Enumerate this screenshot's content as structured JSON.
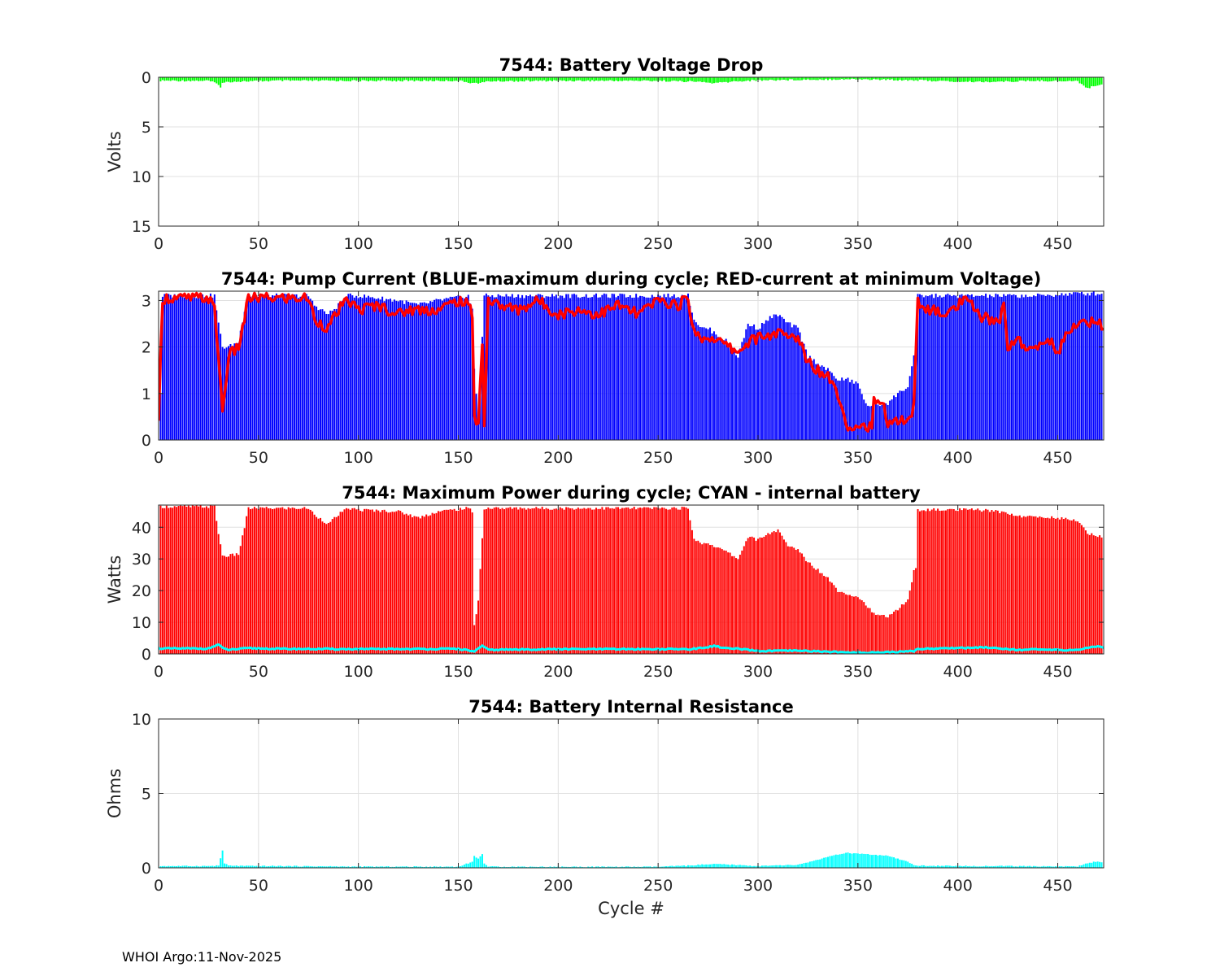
{
  "figure": {
    "xlabel": "Cycle #",
    "footer": "WHOI Argo:11-Nov-2025"
  },
  "chart_data": [
    {
      "type": "bar",
      "title": "7544: Battery Voltage Drop",
      "xlabel": "",
      "ylabel": "Volts",
      "xlim": [
        0,
        473
      ],
      "ylim": [
        0,
        15
      ],
      "y_reversed": true,
      "xticks": [
        0,
        50,
        100,
        150,
        200,
        250,
        300,
        350,
        400,
        450
      ],
      "yticks": [
        0,
        5,
        10,
        15
      ],
      "grid": true,
      "color": "#00ff00",
      "series_knots": [
        {
          "name": "voltage_drop",
          "x": [
            1,
            25,
            30,
            31,
            32,
            35,
            45,
            60,
            100,
            150,
            158,
            162,
            165,
            200,
            250,
            270,
            278,
            290,
            300,
            340,
            350,
            380,
            400,
            420,
            440,
            460,
            465,
            470,
            473
          ],
          "y": [
            0.35,
            0.35,
            0.7,
            1.0,
            0.6,
            0.45,
            0.4,
            0.35,
            0.35,
            0.35,
            0.6,
            0.55,
            0.4,
            0.35,
            0.35,
            0.45,
            0.6,
            0.4,
            0.3,
            0.2,
            0.2,
            0.3,
            0.45,
            0.45,
            0.35,
            0.4,
            1.1,
            0.8,
            0.6
          ]
        }
      ]
    },
    {
      "type": "bar+line",
      "title": "7544: Pump Current (BLUE-maximum during cycle; RED-current at minimum Voltage)",
      "xlabel": "",
      "ylabel": "",
      "xlim": [
        0,
        473
      ],
      "ylim": [
        0,
        3.2
      ],
      "xticks": [
        0,
        50,
        100,
        150,
        200,
        250,
        300,
        350,
        400,
        450
      ],
      "yticks": [
        0,
        1,
        2,
        3
      ],
      "grid": true,
      "series_knots": [
        {
          "name": "maximum during cycle",
          "color": "#0000ff",
          "x": [
            1,
            2,
            28,
            30,
            32,
            35,
            40,
            43,
            45,
            75,
            78,
            85,
            90,
            95,
            100,
            120,
            130,
            140,
            155,
            157,
            158,
            160,
            163,
            165,
            200,
            250,
            265,
            268,
            272,
            275,
            285,
            290,
            295,
            300,
            305,
            310,
            315,
            320,
            325,
            335,
            340,
            345,
            350,
            355,
            358,
            360,
            365,
            370,
            375,
            378,
            379,
            380,
            410,
            440,
            460,
            473
          ],
          "y": [
            1.0,
            3.1,
            3.1,
            2.5,
            2.0,
            2.0,
            2.1,
            2.8,
            3.1,
            3.1,
            2.9,
            2.7,
            2.9,
            3.1,
            3.1,
            3.0,
            2.9,
            3.0,
            3.1,
            2.8,
            1.5,
            0.5,
            3.1,
            3.1,
            3.1,
            3.1,
            3.1,
            2.6,
            2.4,
            2.4,
            2.1,
            1.8,
            2.5,
            2.4,
            2.6,
            2.7,
            2.5,
            2.4,
            1.8,
            1.5,
            1.3,
            1.3,
            1.2,
            0.7,
            0.8,
            0.75,
            0.8,
            1.0,
            1.15,
            1.8,
            1.5,
            3.1,
            3.1,
            3.1,
            3.15,
            3.15
          ]
        },
        {
          "name": "current at minimum voltage",
          "color": "#ff0000",
          "x": [
            0,
            1,
            2,
            25,
            28,
            30,
            32,
            35,
            40,
            43,
            45,
            75,
            78,
            85,
            90,
            95,
            100,
            110,
            120,
            125,
            130,
            140,
            150,
            155,
            157,
            158,
            160,
            162,
            163,
            165,
            170,
            180,
            190,
            200,
            210,
            220,
            230,
            240,
            250,
            260,
            265,
            268,
            272,
            278,
            285,
            290,
            295,
            300,
            310,
            315,
            320,
            325,
            330,
            335,
            340,
            342,
            345,
            350,
            355,
            357,
            358,
            360,
            363,
            365,
            370,
            375,
            378,
            380,
            385,
            395,
            400,
            405,
            410,
            415,
            420,
            423,
            425,
            430,
            435,
            440,
            445,
            450,
            455,
            460,
            465,
            470,
            473
          ],
          "y": [
            0.3,
            1.8,
            3.05,
            3.05,
            2.8,
            1.8,
            0.6,
            1.8,
            2.0,
            2.6,
            3.05,
            3.05,
            2.6,
            2.4,
            2.8,
            3.0,
            2.8,
            2.9,
            2.7,
            2.8,
            2.8,
            2.8,
            3.0,
            2.9,
            2.7,
            0.5,
            0.4,
            2.0,
            0.4,
            3.0,
            2.9,
            2.8,
            3.0,
            2.7,
            2.8,
            2.7,
            2.9,
            2.7,
            3.0,
            2.9,
            3.05,
            2.3,
            2.2,
            2.2,
            2.0,
            1.9,
            2.1,
            2.2,
            2.3,
            2.2,
            2.2,
            1.7,
            1.5,
            1.4,
            1.0,
            0.7,
            0.3,
            0.3,
            0.3,
            0.3,
            0.8,
            0.75,
            0.7,
            0.4,
            0.4,
            0.4,
            0.7,
            3.0,
            2.8,
            2.7,
            2.9,
            3.0,
            2.7,
            2.6,
            2.5,
            2.9,
            2.0,
            2.2,
            1.9,
            2.0,
            2.2,
            1.9,
            2.3,
            2.5,
            2.5,
            2.6,
            2.4
          ]
        }
      ]
    },
    {
      "type": "bar+line",
      "title": "7544: Maximum Power during cycle; CYAN - internal battery",
      "xlabel": "",
      "ylabel": "Watts",
      "xlim": [
        0,
        473
      ],
      "ylim": [
        0,
        47
      ],
      "xticks": [
        0,
        50,
        100,
        150,
        200,
        250,
        300,
        350,
        400,
        450
      ],
      "yticks": [
        0,
        10,
        20,
        30,
        40
      ],
      "grid": true,
      "series_knots": [
        {
          "name": "maximum power",
          "color": "#ff0000",
          "x": [
            1,
            28,
            30,
            32,
            35,
            40,
            43,
            45,
            75,
            78,
            85,
            90,
            95,
            100,
            120,
            130,
            140,
            155,
            157,
            158,
            160,
            163,
            165,
            200,
            250,
            265,
            268,
            272,
            275,
            285,
            290,
            295,
            300,
            305,
            310,
            315,
            320,
            325,
            335,
            340,
            345,
            350,
            355,
            358,
            360,
            365,
            370,
            375,
            378,
            379,
            380,
            410,
            420,
            425,
            430,
            450,
            460,
            465,
            473
          ],
          "y": [
            46.5,
            46.5,
            38,
            31,
            31,
            31.5,
            40,
            46,
            46,
            44,
            41,
            44,
            46,
            45.5,
            45,
            43,
            45,
            46,
            45,
            9,
            17,
            46,
            46,
            46,
            46,
            46,
            36,
            35,
            35,
            32,
            30,
            37,
            36,
            38,
            39,
            34,
            33,
            29,
            24,
            20,
            19,
            18,
            15,
            12.5,
            12,
            12,
            14,
            17,
            26,
            27,
            45.5,
            45.5,
            45,
            44.5,
            43.5,
            43,
            42,
            38,
            37
          ]
        },
        {
          "name": "internal battery",
          "color": "#00ffff",
          "x": [
            0,
            2,
            25,
            30,
            32,
            35,
            45,
            60,
            100,
            150,
            158,
            162,
            165,
            200,
            250,
            265,
            270,
            275,
            278,
            285,
            290,
            300,
            320,
            340,
            345,
            350,
            360,
            370,
            378,
            380,
            390,
            400,
            410,
            415,
            420,
            430,
            440,
            450,
            460,
            465,
            470,
            473
          ],
          "y": [
            1.8,
            1.7,
            1.7,
            3.0,
            1.8,
            1.3,
            1.8,
            1.6,
            1.5,
            1.6,
            0.8,
            2.5,
            1.3,
            1.5,
            1.5,
            1.5,
            1.7,
            2.2,
            2.5,
            1.7,
            1.6,
            0.9,
            1.0,
            0.6,
            0.4,
            0.4,
            0.5,
            0.6,
            0.9,
            1.6,
            1.7,
            1.9,
            2.0,
            2.1,
            1.8,
            1.3,
            1.4,
            1.2,
            1.3,
            1.9,
            2.4,
            2.0
          ]
        }
      ]
    },
    {
      "type": "bar",
      "title": "7544: Battery Internal Resistance",
      "xlabel": "Cycle #",
      "ylabel": "Ohms",
      "xlim": [
        0,
        473
      ],
      "ylim": [
        0,
        10
      ],
      "xticks": [
        0,
        50,
        100,
        150,
        200,
        250,
        300,
        350,
        400,
        450
      ],
      "yticks": [
        0,
        5,
        10
      ],
      "grid": true,
      "color": "#00ffff",
      "series_knots": [
        {
          "name": "internal resistance",
          "x": [
            1,
            25,
            30,
            32,
            33,
            35,
            45,
            60,
            100,
            150,
            157,
            158,
            160,
            162,
            163,
            165,
            200,
            250,
            265,
            270,
            280,
            300,
            320,
            340,
            345,
            350,
            355,
            360,
            365,
            370,
            375,
            378,
            380,
            400,
            420,
            440,
            450,
            460,
            465,
            470,
            473
          ],
          "y": [
            0.12,
            0.12,
            0.15,
            1.15,
            0.3,
            0.15,
            0.12,
            0.12,
            0.08,
            0.08,
            0.4,
            0.8,
            0.6,
            0.95,
            0.3,
            0.08,
            0.07,
            0.07,
            0.15,
            0.2,
            0.25,
            0.12,
            0.2,
            0.9,
            1.0,
            0.95,
            0.9,
            0.85,
            0.8,
            0.6,
            0.4,
            0.2,
            0.15,
            0.12,
            0.12,
            0.1,
            0.1,
            0.1,
            0.3,
            0.45,
            0.35
          ]
        }
      ]
    }
  ]
}
